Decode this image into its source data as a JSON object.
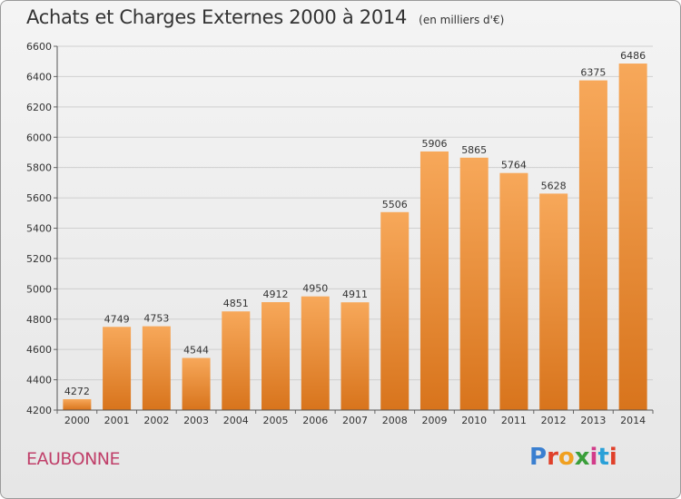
{
  "header": {
    "title": "Achats et Charges Externes 2000 à 2014",
    "subtitle": "(en milliers d'€)"
  },
  "footer": {
    "city": "EAUBONNE",
    "logo_text": "Proxiti",
    "logo_colors": [
      "#3a7fd0",
      "#e0402a",
      "#f0a020",
      "#3a9e3a",
      "#d23c8a",
      "#2aa0d8",
      "#e0402a"
    ]
  },
  "chart_data": {
    "type": "bar",
    "title": "Achats et Charges Externes 2000 à 2014",
    "subtitle": "(en milliers d'€)",
    "categories": [
      "2000",
      "2001",
      "2002",
      "2003",
      "2004",
      "2005",
      "2006",
      "2007",
      "2008",
      "2009",
      "2010",
      "2011",
      "2012",
      "2013",
      "2014"
    ],
    "values": [
      4272,
      4749,
      4753,
      4544,
      4851,
      4912,
      4950,
      4911,
      5506,
      5906,
      5865,
      5764,
      5628,
      6375,
      6486
    ],
    "ylim": [
      4200,
      6600
    ],
    "yticks": [
      4200,
      4400,
      4600,
      4800,
      5000,
      5200,
      5400,
      5600,
      5800,
      6000,
      6200,
      6400,
      6600
    ],
    "grid": true,
    "bar_color_top": "#f7a85a",
    "bar_color_bottom": "#d8741c"
  }
}
